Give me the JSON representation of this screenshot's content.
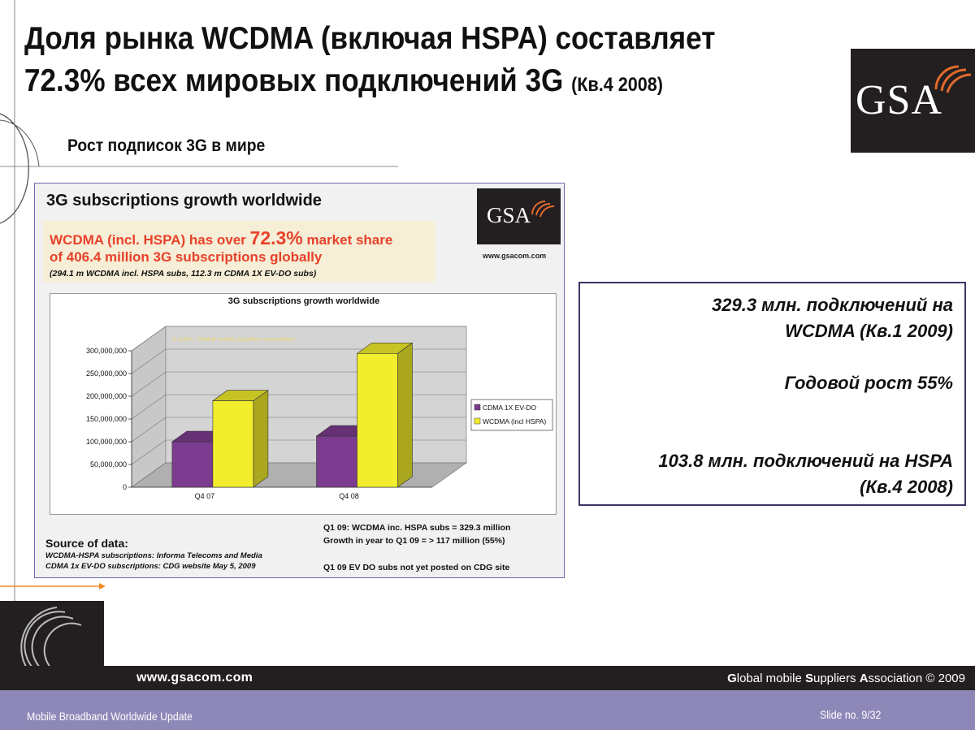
{
  "slide": {
    "title_line1": "Доля рынка WCDMA (включая HSPA) составляет",
    "title_line2": "72.3% всех мировых подключений 3G",
    "title_suffix": "(Кв.4 2008)",
    "subtitle": "Рост подписок 3G в мире",
    "logo_text": "GSA"
  },
  "panel": {
    "title": "3G subscriptions growth worldwide",
    "highlight_part1": "WCDMA (incl. HSPA) has over ",
    "highlight_big": "72.3%",
    "highlight_part2": " market share",
    "highlight_line2": "of 406.4 million 3G subscriptions globally",
    "highlight_line3": "(294.1 m WCDMA incl. HSPA subs, 112.3 m CDMA 1X EV-DO subs)",
    "logo_text": "GSA",
    "logo_url": "www.gsacom.com",
    "source_heading": "Source of data:",
    "source_line1": "WCDMA-HSPA subscriptions: Informa Telecoms and Media",
    "source_line2": "CDMA 1x EV-DO subscriptions: CDG website May 5, 2009",
    "note_line1": "Q1 09: WCDMA inc. HSPA subs = 329.3 million",
    "note_line2": "Growth in year to Q1 09 = > 117 million (55%)",
    "note_line3": "Q1 09 EV DO subs not yet posted on CDG site"
  },
  "chart_data": {
    "type": "bar",
    "title": "3G subscriptions growth worldwide",
    "watermark": "© GSA – Global mobile Suppliers Association",
    "categories": [
      "Q4 07",
      "Q4 08"
    ],
    "series": [
      {
        "name": "CDMA 1X EV-DO",
        "color": "#7b3b8e",
        "values": [
          100000000,
          112300000
        ]
      },
      {
        "name": "WCDMA (incl HSPA)",
        "color": "#f3ee2d",
        "values": [
          190000000,
          294100000
        ]
      }
    ],
    "ylim": [
      0,
      300000000
    ],
    "yticks": [
      0,
      50000000,
      100000000,
      150000000,
      200000000,
      250000000,
      300000000
    ],
    "ytick_labels": [
      "0",
      "50,000,000",
      "100,000,000",
      "150,000,000",
      "200,000,000",
      "250,000,000",
      "300,000,000"
    ],
    "grid": true,
    "legend_position": "right"
  },
  "info": {
    "line1": "329.3 млн. подключений на",
    "line2": "WCDMA (Кв.1 2009)",
    "line3": "Годовой рост 55%",
    "line4": "103.8 млн. подключений на HSPA",
    "line5": "(Кв.4 2008)"
  },
  "footer": {
    "url": "www.gsacom.com",
    "assoc_G": "G",
    "assoc_lobal": "lobal mobile ",
    "assoc_S": "S",
    "assoc_uppliers": "uppliers ",
    "assoc_A": "A",
    "assoc_rest": "ssociation © 2009",
    "left_text": "Mobile Broadband Worldwide Update",
    "right_text": "Slide no. 9/32"
  }
}
